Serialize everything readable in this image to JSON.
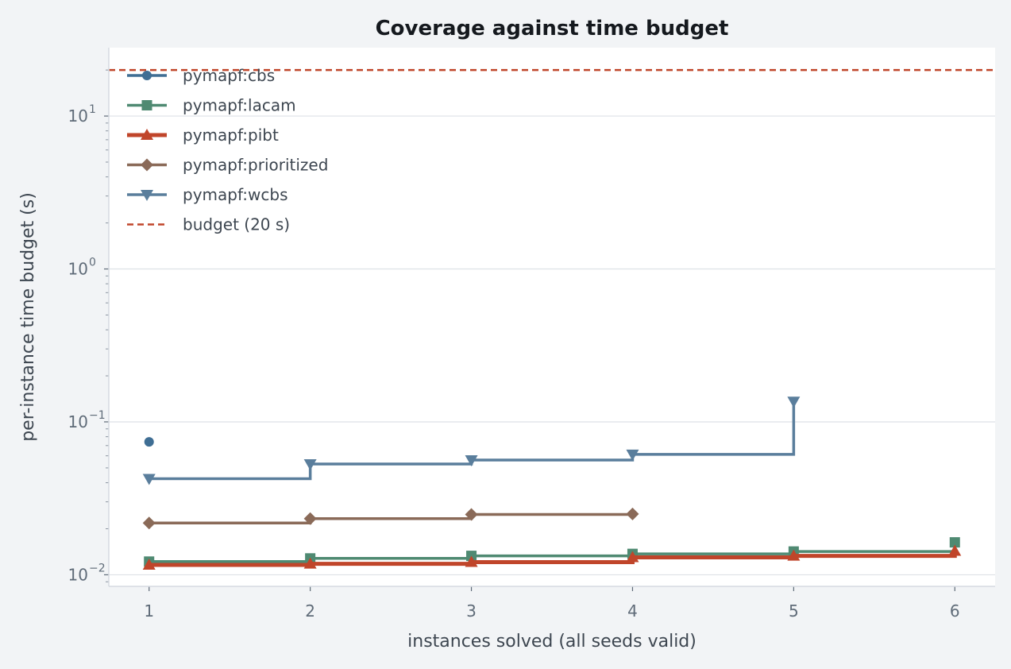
{
  "chart_data": {
    "type": "line",
    "title": "Coverage against time budget",
    "xlabel": "instances solved (all seeds valid)",
    "ylabel": "per-instance time budget (s)",
    "x_ticks": [
      1,
      2,
      3,
      4,
      5,
      6
    ],
    "y_scale": "log",
    "y_ticks": [
      {
        "value": 0.01,
        "base": "10",
        "exp": "−2"
      },
      {
        "value": 0.1,
        "base": "10",
        "exp": "−1"
      },
      {
        "value": 1,
        "base": "10",
        "exp": "0"
      },
      {
        "value": 10,
        "base": "10",
        "exp": "1"
      }
    ],
    "xlim": [
      0.75,
      6.25
    ],
    "ylim": [
      0.0084,
      28
    ],
    "grid": "horizontal",
    "legend_position": "top-left",
    "step": "post",
    "series": [
      {
        "name": "pymapf:cbs",
        "color": "#3f6e94",
        "marker": "circle",
        "points": [
          [
            1,
            0.074
          ]
        ]
      },
      {
        "name": "pymapf:lacam",
        "color": "#4f8a72",
        "marker": "square",
        "points": [
          [
            1,
            0.0122
          ],
          [
            2,
            0.0128
          ],
          [
            3,
            0.0133
          ],
          [
            4,
            0.0137
          ],
          [
            5,
            0.0142
          ],
          [
            6,
            0.0163
          ]
        ]
      },
      {
        "name": "pymapf:pibt",
        "color": "#c0452a",
        "marker": "triangle-up",
        "points": [
          [
            1,
            0.0116
          ],
          [
            2,
            0.0118
          ],
          [
            3,
            0.0121
          ],
          [
            4,
            0.013
          ],
          [
            5,
            0.0133
          ],
          [
            6,
            0.0143
          ]
        ]
      },
      {
        "name": "pymapf:prioritized",
        "color": "#8a6a58",
        "marker": "diamond",
        "points": [
          [
            1,
            0.0218
          ],
          [
            2,
            0.0233
          ],
          [
            3,
            0.0248
          ],
          [
            4,
            0.025
          ]
        ]
      },
      {
        "name": "pymapf:wcbs",
        "color": "#5a7e9c",
        "marker": "triangle-down",
        "points": [
          [
            1,
            0.0425
          ],
          [
            2,
            0.053
          ],
          [
            3,
            0.0563
          ],
          [
            4,
            0.0613
          ],
          [
            5,
            0.136
          ]
        ]
      }
    ],
    "reference_line": {
      "name": "budget (20 s)",
      "value": 20,
      "color": "#c0452a",
      "style": "dashed"
    }
  }
}
